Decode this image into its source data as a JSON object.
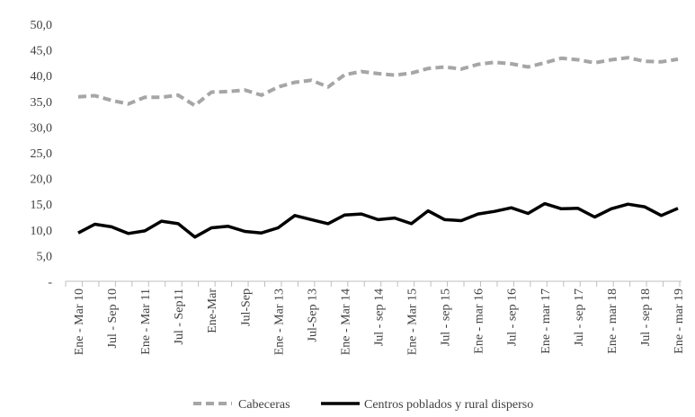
{
  "chart_data": {
    "type": "line",
    "title": "",
    "xlabel": "",
    "ylabel": "",
    "ylim": [
      0,
      50
    ],
    "yticks": [
      "-",
      "5,0",
      "10,0",
      "15,0",
      "20,0",
      "25,0",
      "30,0",
      "35,0",
      "40,0",
      "45,0",
      "50,0"
    ],
    "grid": false,
    "legend_position": "bottom",
    "categories": [
      "Ene - Mar 10",
      "",
      "Jul - Sep 10",
      "",
      "Ene - Mar 11",
      "",
      "Jul - Sep11",
      "",
      "Ene-Mar",
      "",
      "Jul-Sep",
      "",
      "Ene - Mar 13",
      "",
      "Jul-Sep 13",
      "",
      "Ene - Mar 14",
      "",
      "Jul - sep 14",
      "",
      "Ene - Mar 15",
      "",
      "Jul - sep 15",
      "",
      "Ene - mar 16",
      "",
      "Jul - sep 16",
      "",
      "Ene - mar 17",
      "",
      "Jul - sep 17",
      "",
      "Ene - mar 18",
      "",
      "Jul - sep 18",
      "",
      "Ene - mar 19"
    ],
    "series": [
      {
        "name": "Cabeceras",
        "style": "dashed",
        "color": "#a6a6a6",
        "values": [
          35.9,
          36.1,
          35.2,
          34.5,
          35.8,
          35.8,
          36.2,
          34.2,
          36.8,
          36.9,
          37.2,
          36.2,
          37.8,
          38.7,
          39.1,
          37.8,
          40.2,
          40.8,
          40.4,
          40.1,
          40.5,
          41.4,
          41.7,
          41.3,
          42.2,
          42.6,
          42.3,
          41.7,
          42.5,
          43.4,
          43.1,
          42.5,
          43.1,
          43.5,
          42.8,
          42.7,
          43.2
        ]
      },
      {
        "name": "Centros poblados y rural disperso",
        "style": "solid",
        "color": "#000000",
        "values": [
          9.4,
          11.1,
          10.6,
          9.3,
          9.8,
          11.7,
          11.2,
          8.6,
          10.4,
          10.7,
          9.7,
          9.4,
          10.4,
          12.8,
          12.0,
          11.2,
          12.9,
          13.1,
          12.0,
          12.3,
          11.2,
          13.7,
          12.0,
          11.8,
          13.1,
          13.6,
          14.3,
          13.2,
          15.1,
          14.1,
          14.2,
          12.5,
          14.1,
          15.0,
          14.5,
          12.8,
          14.2
        ]
      }
    ]
  }
}
